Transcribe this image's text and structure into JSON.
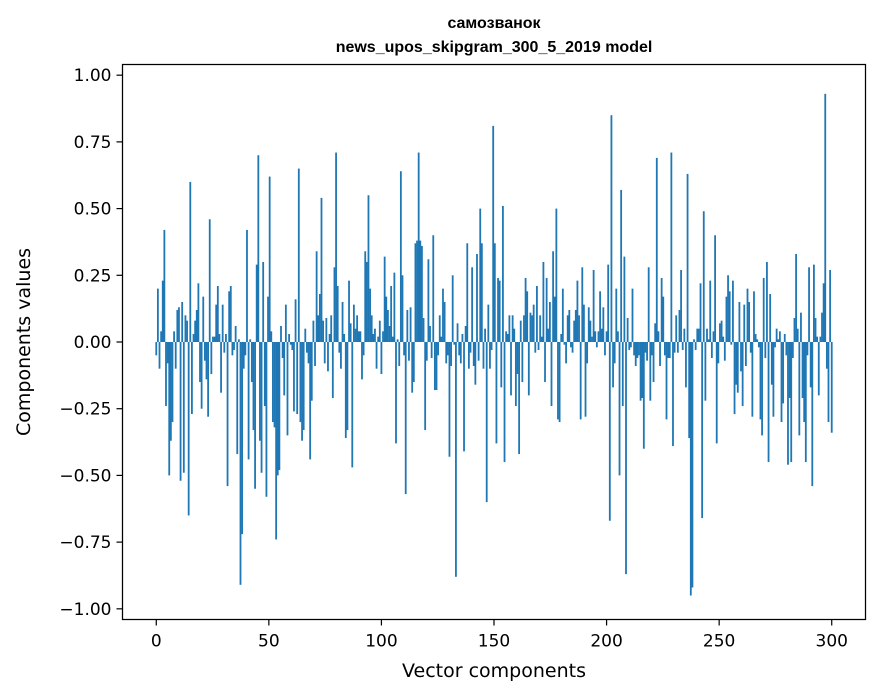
{
  "chart_data": {
    "type": "bar",
    "title": "самозванок",
    "subtitle": "news_upos_skipgram_300_5_2019 model",
    "xlabel": "Vector components",
    "ylabel": "Components values",
    "xlim": [
      -15,
      315
    ],
    "ylim": [
      -1.04,
      1.04
    ],
    "xticks": [
      0,
      50,
      100,
      150,
      200,
      250,
      300
    ],
    "xtick_labels": [
      "0",
      "50",
      "100",
      "150",
      "200",
      "250",
      "300"
    ],
    "yticks": [
      1.0,
      0.75,
      0.5,
      0.25,
      0.0,
      -0.25,
      -0.5,
      -0.75,
      -1.0
    ],
    "ytick_labels": [
      "1.00",
      "0.75",
      "0.50",
      "0.25",
      "0.00",
      "−0.25",
      "−0.50",
      "−0.75",
      "−1.00"
    ],
    "bar_color": "#1f77b4",
    "values": [
      -0.05,
      0.2,
      -0.1,
      0.04,
      0.23,
      0.42,
      -0.24,
      -0.08,
      -0.5,
      -0.37,
      -0.3,
      0.04,
      -0.1,
      0.12,
      0.13,
      -0.52,
      0.15,
      -0.49,
      0.1,
      0.08,
      -0.65,
      0.6,
      -0.27,
      0.03,
      0.08,
      0.12,
      0.22,
      -0.15,
      -0.25,
      0.17,
      -0.07,
      -0.14,
      -0.28,
      0.46,
      -0.12,
      0.02,
      0.02,
      0.14,
      0.21,
      0.03,
      -0.19,
      0.14,
      -0.04,
      0.03,
      -0.54,
      0.19,
      0.21,
      -0.05,
      -0.03,
      0.06,
      -0.42,
      0.01,
      -0.91,
      -0.72,
      -0.1,
      -0.05,
      0.42,
      -0.44,
      0.01,
      -0.15,
      -0.33,
      -0.55,
      0.29,
      0.7,
      -0.37,
      -0.49,
      0.3,
      -0.24,
      -0.58,
      0.17,
      0.62,
      0.04,
      -0.3,
      -0.32,
      -0.74,
      -0.5,
      -0.48,
      0.06,
      -0.06,
      -0.2,
      0.14,
      -0.35,
      0.03,
      -0.01,
      -0.03,
      -0.26,
      0.16,
      -0.27,
      0.65,
      -0.3,
      -0.37,
      -0.33,
      0.05,
      -0.04,
      -0.08,
      -0.44,
      -0.22,
      0.08,
      -0.09,
      0.34,
      0.1,
      0.18,
      0.54,
      0.08,
      -0.08,
      0.09,
      -0.11,
      0.03,
      0.1,
      -0.21,
      0.28,
      0.71,
      0.21,
      -0.04,
      -0.1,
      0.15,
      0.03,
      -0.36,
      -0.33,
      0.23,
      0.07,
      -0.47,
      0.14,
      0.05,
      0.1,
      0.04,
      0.04,
      -0.14,
      -0.05,
      0.34,
      0.3,
      0.55,
      0.2,
      0.1,
      0.03,
      0.05,
      -0.1,
      0.02,
      0.08,
      -0.12,
      0.04,
      0.32,
      0.17,
      0.12,
      0.06,
      0.21,
      0.02,
      0.26,
      -0.38,
      0.01,
      -0.09,
      0.64,
      0.25,
      -0.05,
      -0.57,
      0.12,
      -0.07,
      0.13,
      -0.19,
      -0.15,
      0.37,
      0.38,
      0.71,
      0.38,
      0.36,
      0.09,
      -0.33,
      -0.07,
      0.31,
      0.06,
      -0.06,
      0.4,
      -0.18,
      -0.18,
      -0.05,
      0.1,
      0.02,
      0.2,
      0.15,
      -0.08,
      -0.05,
      -0.43,
      -0.09,
      0.25,
      -0.01,
      -0.88,
      0.07,
      -0.05,
      -0.08,
      0.03,
      -0.41,
      0.06,
      0.37,
      -0.1,
      -0.04,
      0.28,
      -0.09,
      -0.16,
      0.33,
      -0.07,
      0.5,
      0.37,
      -0.1,
      0.05,
      -0.6,
      0.14,
      -0.1,
      -0.03,
      0.81,
      0.37,
      -0.38,
      0.24,
      0.23,
      -0.17,
      0.51,
      -0.45,
      0.04,
      0.03,
      0.1,
      -0.2,
      0.1,
      0.05,
      -0.24,
      -0.12,
      -0.42,
      0.08,
      -0.15,
      0.1,
      0.24,
      0.19,
      -0.2,
      0.11,
      0.1,
      0.14,
      -0.04,
      0.21,
      -0.03,
      0.1,
      0.02,
      0.3,
      -0.15,
      0.24,
      0.05,
      0.15,
      -0.24,
      0.34,
      0.17,
      0.5,
      -0.29,
      -0.3,
      0.03,
      0.2,
      -0.01,
      -0.08,
      0.1,
      0.12,
      -0.02,
      -0.04,
      0.08,
      0.12,
      0.23,
      0.1,
      -0.29,
      0.28,
      0.14,
      -0.28,
      -0.08,
      0.13,
      0.08,
      0.02,
      0.27,
      0.04,
      -0.02,
      0.04,
      0.19,
      0.05,
      0.13,
      -0.05,
      0.04,
      0.29,
      -0.67,
      0.85,
      -0.17,
      -0.08,
      0.2,
      0.04,
      -0.5,
      0.57,
      -0.24,
      0.32,
      -0.87,
      0.09,
      -0.03,
      -0.02,
      0.2,
      -0.05,
      -0.09,
      -0.06,
      -0.05,
      -0.22,
      -0.21,
      -0.4,
      -0.04,
      -0.07,
      0.28,
      -0.22,
      -0.05,
      -0.15,
      0.07,
      0.69,
      0.04,
      -0.09,
      0.24,
      0.17,
      -0.05,
      -0.29,
      -0.06,
      -0.06,
      0.71,
      -0.39,
      -0.04,
      0.1,
      -0.04,
      0.12,
      0.27,
      -0.03,
      0.05,
      -0.17,
      0.63,
      -0.36,
      -0.95,
      -0.92,
      0.01,
      -0.03,
      0.05,
      0.05,
      0.22,
      -0.66,
      0.49,
      -0.22,
      0.05,
      0.01,
      0.23,
      -0.06,
      0.04,
      0.4,
      -0.38,
      -0.08,
      0.07,
      0.08,
      0.02,
      -0.07,
      0.17,
      0.25,
      0.19,
      -0.01,
      0.23,
      -0.27,
      -0.16,
      -0.19,
      0.15,
      -0.11,
      -0.24,
      0.14,
      -0.09,
      0.2,
      0.15,
      -0.04,
      -0.28,
      0.19,
      0.03,
      0.01,
      -0.02,
      -0.29,
      -0.35,
      0.24,
      -0.06,
      0.3,
      -0.45,
      0.18,
      -0.16,
      -0.28,
      -0.02,
      0.05,
      0.01,
      0.04,
      -0.3,
      -0.23,
      0.03,
      -0.05,
      -0.46,
      -0.21,
      -0.45,
      -0.06,
      0.09,
      0.33,
      0.05,
      -0.35,
      0.11,
      -0.21,
      -0.3,
      -0.45,
      -0.05,
      0.28,
      -0.17,
      -0.54,
      0.29,
      0.09,
      0.02,
      -0.2,
      0.02,
      0.11,
      0.22,
      0.93,
      -0.1,
      -0.3,
      0.27,
      -0.34
    ]
  }
}
